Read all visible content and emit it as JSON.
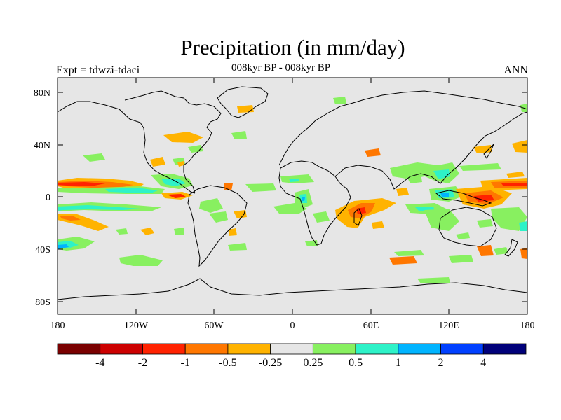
{
  "title": "Precipitation (in mm/day)",
  "experiment": "Expt = tdwzi-tdaci",
  "period": "008kyr BP - 008kyr BP",
  "season": "ANN",
  "lat_labels": [
    "80N",
    "40N",
    "0",
    "40S",
    "80S"
  ],
  "lon_labels": [
    "180",
    "120W",
    "60W",
    "0",
    "60E",
    "120E",
    "180"
  ],
  "colorbar": {
    "colors": [
      "#7a0000",
      "#cc0000",
      "#ff2200",
      "#ff7700",
      "#ffb300",
      "#e6e6e6",
      "#88f060",
      "#2ef2c8",
      "#00b4ff",
      "#0040ff",
      "#00007a"
    ],
    "labels": [
      "-4",
      "-2",
      "-1",
      "-0.5",
      "-0.25",
      "0.25",
      "0.5",
      "1",
      "2",
      "4"
    ]
  },
  "colors": {
    "ocean_background": "#e6e6e6",
    "coastline": "#000000"
  }
}
